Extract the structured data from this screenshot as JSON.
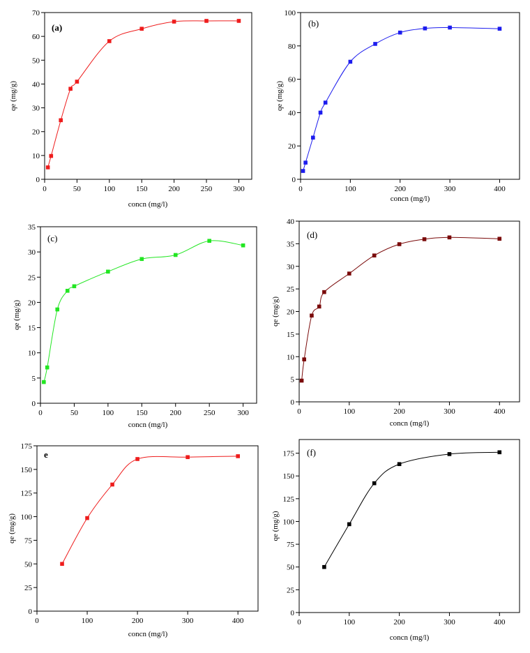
{
  "chart_data": [
    {
      "type": "scatter",
      "panel_label": "(a)",
      "panel_label_bold": true,
      "xlabel": "concn (mg/l)",
      "ylabel": "qe (mg/g)",
      "xlim": [
        0,
        320
      ],
      "ylim": [
        0,
        70
      ],
      "xticks": [
        0,
        50,
        100,
        150,
        200,
        250,
        300
      ],
      "yticks": [
        0,
        10,
        20,
        30,
        40,
        50,
        60,
        70
      ],
      "color": "#ee1c1c",
      "series": [
        {
          "x": [
            5,
            10,
            25,
            40,
            50,
            100,
            150,
            200,
            250,
            300
          ],
          "y": [
            5,
            9.8,
            24.8,
            38,
            41,
            58,
            63.2,
            66.2,
            66.5,
            66.5
          ]
        }
      ]
    },
    {
      "type": "scatter",
      "panel_label": "(b)",
      "panel_label_bold": false,
      "xlabel": "concn (mg/l)",
      "ylabel": "qe (mg/g)",
      "xlim": [
        0,
        440
      ],
      "ylim": [
        0,
        100
      ],
      "xticks": [
        0,
        100,
        200,
        300,
        400
      ],
      "yticks": [
        0,
        20,
        40,
        60,
        80,
        100
      ],
      "color": "#1c1cee",
      "series": [
        {
          "x": [
            5,
            10,
            25,
            40,
            50,
            100,
            150,
            200,
            250,
            300,
            400
          ],
          "y": [
            5,
            10,
            25,
            40,
            46,
            70.5,
            81.2,
            88,
            90.5,
            91,
            90.3
          ]
        }
      ]
    },
    {
      "type": "scatter",
      "panel_label": "(c)",
      "panel_label_bold": false,
      "xlabel": "concn (mg/l)",
      "ylabel": "qe (mg/g)",
      "xlim": [
        0,
        320
      ],
      "ylim": [
        0,
        35
      ],
      "xticks": [
        0,
        50,
        100,
        150,
        200,
        250,
        300
      ],
      "yticks": [
        0,
        5,
        10,
        15,
        20,
        25,
        30,
        35
      ],
      "color": "#22e622",
      "series": [
        {
          "x": [
            5,
            10,
            25,
            40,
            50,
            100,
            150,
            200,
            250,
            300
          ],
          "y": [
            4.2,
            7.1,
            18.6,
            22.3,
            23.2,
            26.1,
            28.6,
            29.4,
            32.2,
            31.3
          ]
        }
      ]
    },
    {
      "type": "scatter",
      "panel_label": "(d)",
      "panel_label_bold": false,
      "xlabel": "concn (mg/l)",
      "ylabel": "qe (mg/g)",
      "xlim": [
        0,
        440
      ],
      "ylim": [
        0,
        40
      ],
      "xticks": [
        0,
        100,
        200,
        300,
        400
      ],
      "yticks": [
        0,
        5,
        10,
        15,
        20,
        25,
        30,
        35,
        40
      ],
      "color": "#7a0a0a",
      "series": [
        {
          "x": [
            5,
            10,
            25,
            40,
            50,
            100,
            150,
            200,
            250,
            300,
            400
          ],
          "y": [
            4.7,
            9.4,
            19.1,
            21.1,
            24.3,
            28.4,
            32.4,
            34.9,
            36,
            36.4,
            36.1
          ]
        }
      ]
    },
    {
      "type": "scatter",
      "panel_label": "e",
      "panel_label_bold": true,
      "xlabel": "concn (mg/l)",
      "ylabel": "qe (mg/g)",
      "xlim": [
        0,
        440
      ],
      "ylim": [
        0,
        175
      ],
      "xticks": [
        0,
        100,
        200,
        300,
        400
      ],
      "yticks": [
        0,
        25,
        50,
        75,
        100,
        125,
        150,
        175
      ],
      "color": "#ee1c1c",
      "series": [
        {
          "x": [
            50,
            100,
            150,
            200,
            300,
            400
          ],
          "y": [
            50,
            98.5,
            134,
            161,
            163,
            164
          ]
        }
      ]
    },
    {
      "type": "scatter",
      "panel_label": "(f)",
      "panel_label_bold": false,
      "xlabel": "concn (mg/l)",
      "ylabel": "qe (mg/g)",
      "xlim": [
        0,
        440
      ],
      "ylim": [
        0,
        190
      ],
      "xticks": [
        0,
        100,
        200,
        300,
        400
      ],
      "yticks": [
        0,
        25,
        50,
        75,
        100,
        125,
        150,
        175
      ],
      "color": "#000000",
      "series": [
        {
          "x": [
            50,
            100,
            150,
            200,
            300,
            400
          ],
          "y": [
            50,
            97,
            142,
            163,
            174,
            176
          ]
        }
      ]
    }
  ]
}
